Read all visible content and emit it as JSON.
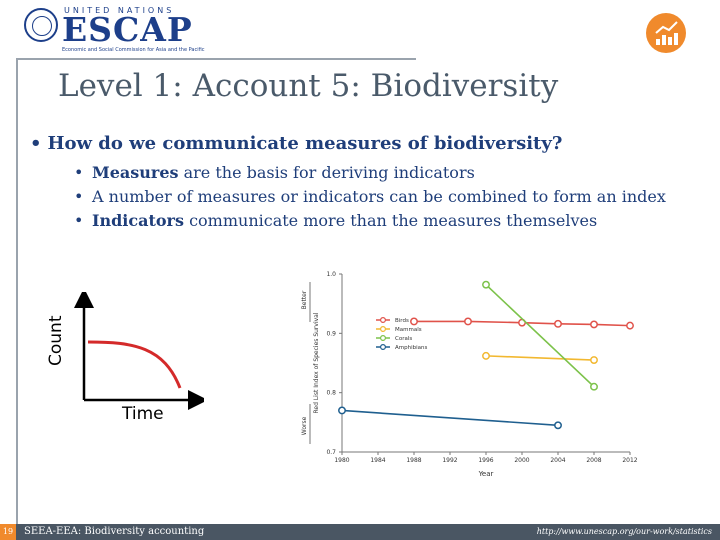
{
  "header": {
    "org_top": "UNITED NATIONS",
    "org_name": "ESCAP",
    "org_sub": "Economic and Social Commission for Asia and the Pacific"
  },
  "slide": {
    "title": "Level 1: Account 5: Biodiversity",
    "question": "How do we communicate measures of biodiversity?",
    "bullets": [
      {
        "bold": "Measures",
        "rest": " are the basis for deriving indicators"
      },
      {
        "bold": "",
        "rest": "A number of measures or indicators can be combined to form an index"
      },
      {
        "bold": "Indicators",
        "rest": " communicate more than the measures themselves"
      }
    ]
  },
  "mini_chart": {
    "y_label": "Count",
    "x_label": "Time",
    "curve_color": "#d42a2a"
  },
  "chart_data": {
    "type": "line",
    "ylabel": "Red List Index of Species Survival",
    "xlabel": "Year",
    "y_top_note": "Better",
    "y_bottom_note": "Worse",
    "xlim": [
      1980,
      2012
    ],
    "ylim": [
      0.7,
      1.0
    ],
    "x_ticks": [
      1980,
      1984,
      1988,
      1992,
      1996,
      2000,
      2004,
      2008,
      2012
    ],
    "y_ticks": [
      0.7,
      0.8,
      0.9,
      1.0
    ],
    "y_tick_labels": [
      "0.7",
      "0.8",
      "0.9",
      "1.0"
    ],
    "legend_position": "center-left",
    "series": [
      {
        "name": "Birds",
        "color": "#e0524a",
        "x": [
          1988,
          1994,
          2000,
          2004,
          2008,
          2012
        ],
        "y": [
          0.92,
          0.92,
          0.918,
          0.916,
          0.915,
          0.913
        ]
      },
      {
        "name": "Mammals",
        "color": "#f2b830",
        "x": [
          1996,
          2008
        ],
        "y": [
          0.862,
          0.855
        ]
      },
      {
        "name": "Corals",
        "color": "#7cc24a",
        "x": [
          1996,
          2008
        ],
        "y": [
          0.982,
          0.81
        ]
      },
      {
        "name": "Amphibians",
        "color": "#1f5f8f",
        "x": [
          1980,
          2004
        ],
        "y": [
          0.77,
          0.745
        ]
      }
    ]
  },
  "footer": {
    "page_number": "19",
    "left_text": "SEEA-EEA: Biodiversity accounting",
    "right_text": "http://www.unescap.org/our-work/statistics"
  }
}
